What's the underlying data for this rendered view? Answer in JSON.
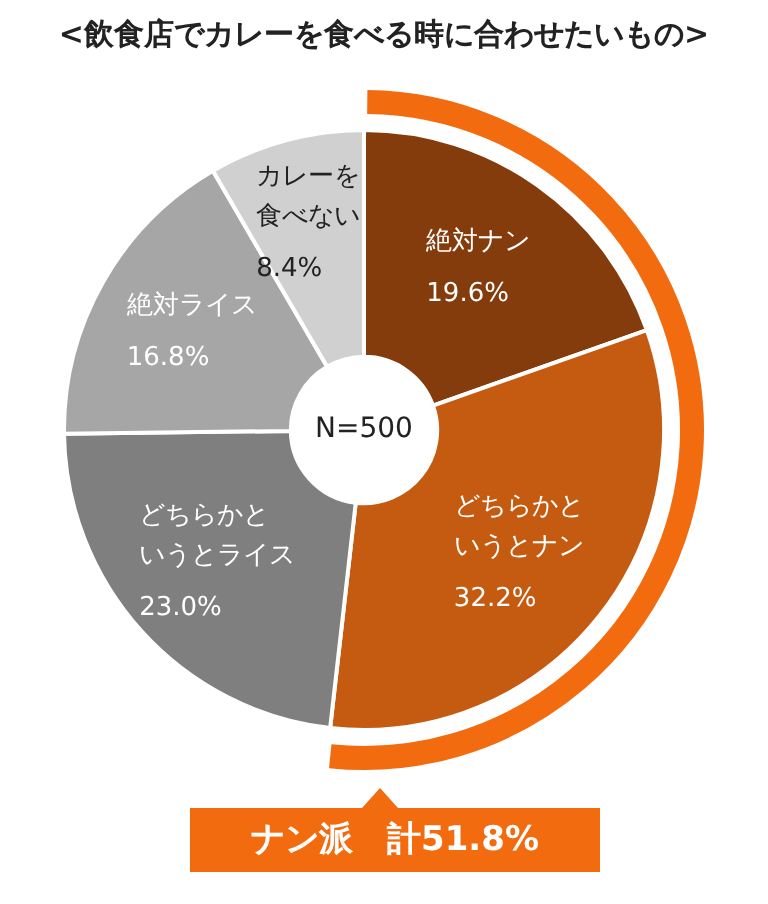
{
  "chart_data": {
    "type": "donut",
    "title": "<飲食店でカレーを食べる時に合わせたいもの>",
    "categories": [
      "絶対ナン",
      "どちらかというとナン",
      "どちらかというとライス",
      "絶対ライス",
      "カレーを食べない"
    ],
    "values": [
      19.6,
      32.2,
      23.0,
      16.8,
      8.4
    ],
    "value_labels": [
      "19.6%",
      "32.2%",
      "23.0%",
      "16.8%",
      "8.4%"
    ],
    "colors": [
      "#843c0c",
      "#c55a11",
      "#7f7f7f",
      "#a6a6a6",
      "#d0d0d0"
    ],
    "annotations": [
      "N=500",
      "ナン派　計51.8%"
    ],
    "legend": false
  }
}
